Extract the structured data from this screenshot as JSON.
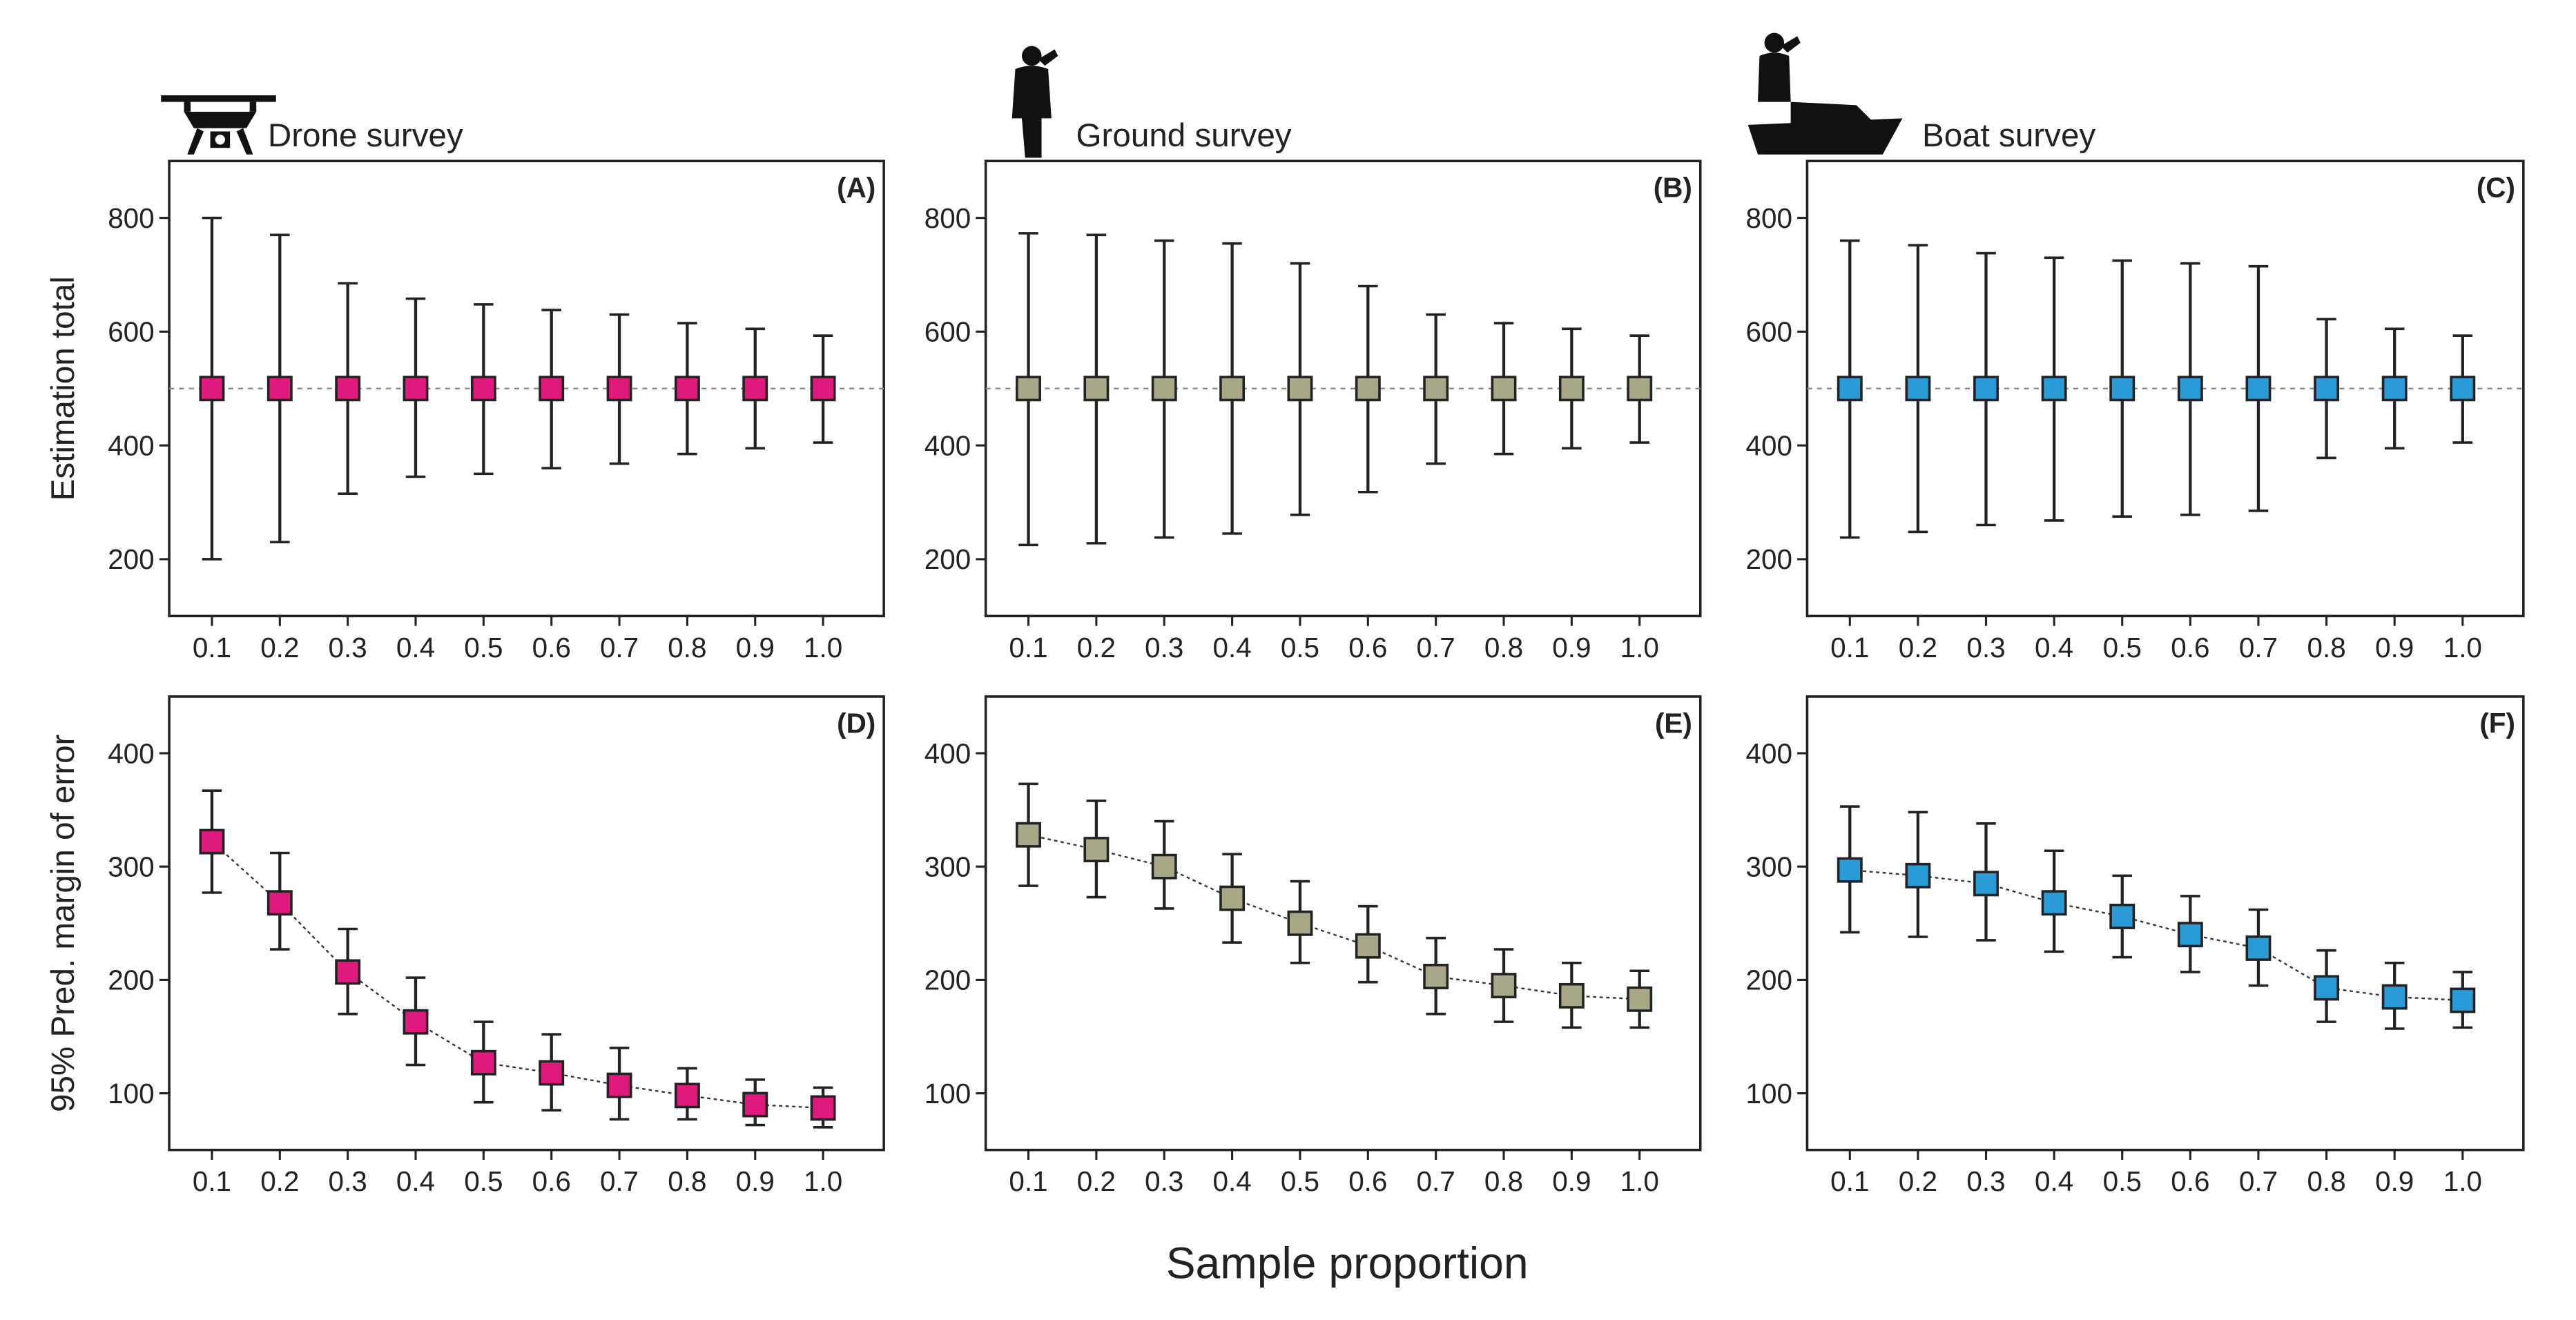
{
  "figure": {
    "xlabel": "Sample proportion"
  },
  "chart_data": [
    {
      "type": "errorbar",
      "panel": "(A)",
      "title": "Drone survey",
      "ylabel": "Estimation total",
      "color": "#e0197d",
      "reference_line": 500,
      "categories": [
        "0.1",
        "0.2",
        "0.3",
        "0.4",
        "0.5",
        "0.6",
        "0.7",
        "0.8",
        "0.9",
        "1.0"
      ],
      "values": [
        500,
        500,
        500,
        500,
        500,
        500,
        500,
        500,
        500,
        500
      ],
      "lower": [
        200,
        230,
        315,
        345,
        350,
        360,
        368,
        385,
        395,
        405
      ],
      "upper": [
        800,
        770,
        685,
        658,
        648,
        638,
        630,
        615,
        605,
        593
      ],
      "ylim": [
        100,
        900
      ],
      "yticks": [
        200,
        400,
        600,
        800
      ]
    },
    {
      "type": "errorbar",
      "panel": "(B)",
      "title": "Ground survey",
      "color": "#a8a888",
      "reference_line": 500,
      "categories": [
        "0.1",
        "0.2",
        "0.3",
        "0.4",
        "0.5",
        "0.6",
        "0.7",
        "0.8",
        "0.9",
        "1.0"
      ],
      "values": [
        500,
        500,
        500,
        500,
        500,
        500,
        500,
        500,
        500,
        500
      ],
      "lower": [
        225,
        228,
        238,
        245,
        278,
        318,
        368,
        385,
        395,
        405
      ],
      "upper": [
        773,
        770,
        760,
        755,
        720,
        680,
        630,
        615,
        605,
        593
      ],
      "ylim": [
        100,
        900
      ],
      "yticks": [
        200,
        400,
        600,
        800
      ]
    },
    {
      "type": "errorbar",
      "panel": "(C)",
      "title": "Boat survey",
      "color": "#2a9bd6",
      "reference_line": 500,
      "categories": [
        "0.1",
        "0.2",
        "0.3",
        "0.4",
        "0.5",
        "0.6",
        "0.7",
        "0.8",
        "0.9",
        "1.0"
      ],
      "values": [
        500,
        500,
        500,
        500,
        500,
        500,
        500,
        500,
        500,
        500
      ],
      "lower": [
        238,
        248,
        260,
        268,
        275,
        278,
        285,
        378,
        395,
        405
      ],
      "upper": [
        760,
        752,
        738,
        730,
        725,
        720,
        715,
        622,
        605,
        593
      ],
      "ylim": [
        100,
        900
      ],
      "yticks": [
        200,
        400,
        600,
        800
      ]
    },
    {
      "type": "errorline",
      "panel": "(D)",
      "ylabel": "95% Pred. margin of error",
      "color": "#e0197d",
      "categories": [
        "0.1",
        "0.2",
        "0.3",
        "0.4",
        "0.5",
        "0.6",
        "0.7",
        "0.8",
        "0.9",
        "1.0"
      ],
      "values": [
        322,
        268,
        207,
        163,
        127,
        118,
        107,
        98,
        90,
        87
      ],
      "lower": [
        277,
        227,
        170,
        125,
        92,
        85,
        77,
        77,
        72,
        70
      ],
      "upper": [
        367,
        312,
        245,
        202,
        163,
        152,
        140,
        122,
        112,
        105
      ],
      "ylim": [
        50,
        450
      ],
      "yticks": [
        100,
        200,
        300,
        400
      ]
    },
    {
      "type": "errorline",
      "panel": "(E)",
      "color": "#a8a888",
      "categories": [
        "0.1",
        "0.2",
        "0.3",
        "0.4",
        "0.5",
        "0.6",
        "0.7",
        "0.8",
        "0.9",
        "1.0"
      ],
      "values": [
        328,
        315,
        300,
        272,
        250,
        230,
        203,
        195,
        186,
        183
      ],
      "lower": [
        283,
        273,
        263,
        233,
        215,
        198,
        170,
        163,
        158,
        158
      ],
      "upper": [
        373,
        358,
        340,
        311,
        287,
        265,
        237,
        227,
        215,
        208
      ],
      "ylim": [
        50,
        450
      ],
      "yticks": [
        100,
        200,
        300,
        400
      ]
    },
    {
      "type": "errorline",
      "panel": "(F)",
      "color": "#2a9bd6",
      "categories": [
        "0.1",
        "0.2",
        "0.3",
        "0.4",
        "0.5",
        "0.6",
        "0.7",
        "0.8",
        "0.9",
        "1.0"
      ],
      "values": [
        297,
        292,
        285,
        268,
        256,
        240,
        228,
        193,
        185,
        182
      ],
      "lower": [
        242,
        238,
        235,
        225,
        220,
        207,
        195,
        163,
        157,
        158
      ],
      "upper": [
        353,
        348,
        338,
        314,
        292,
        274,
        262,
        226,
        215,
        207
      ],
      "ylim": [
        50,
        450
      ],
      "yticks": [
        100,
        200,
        300,
        400
      ]
    }
  ]
}
